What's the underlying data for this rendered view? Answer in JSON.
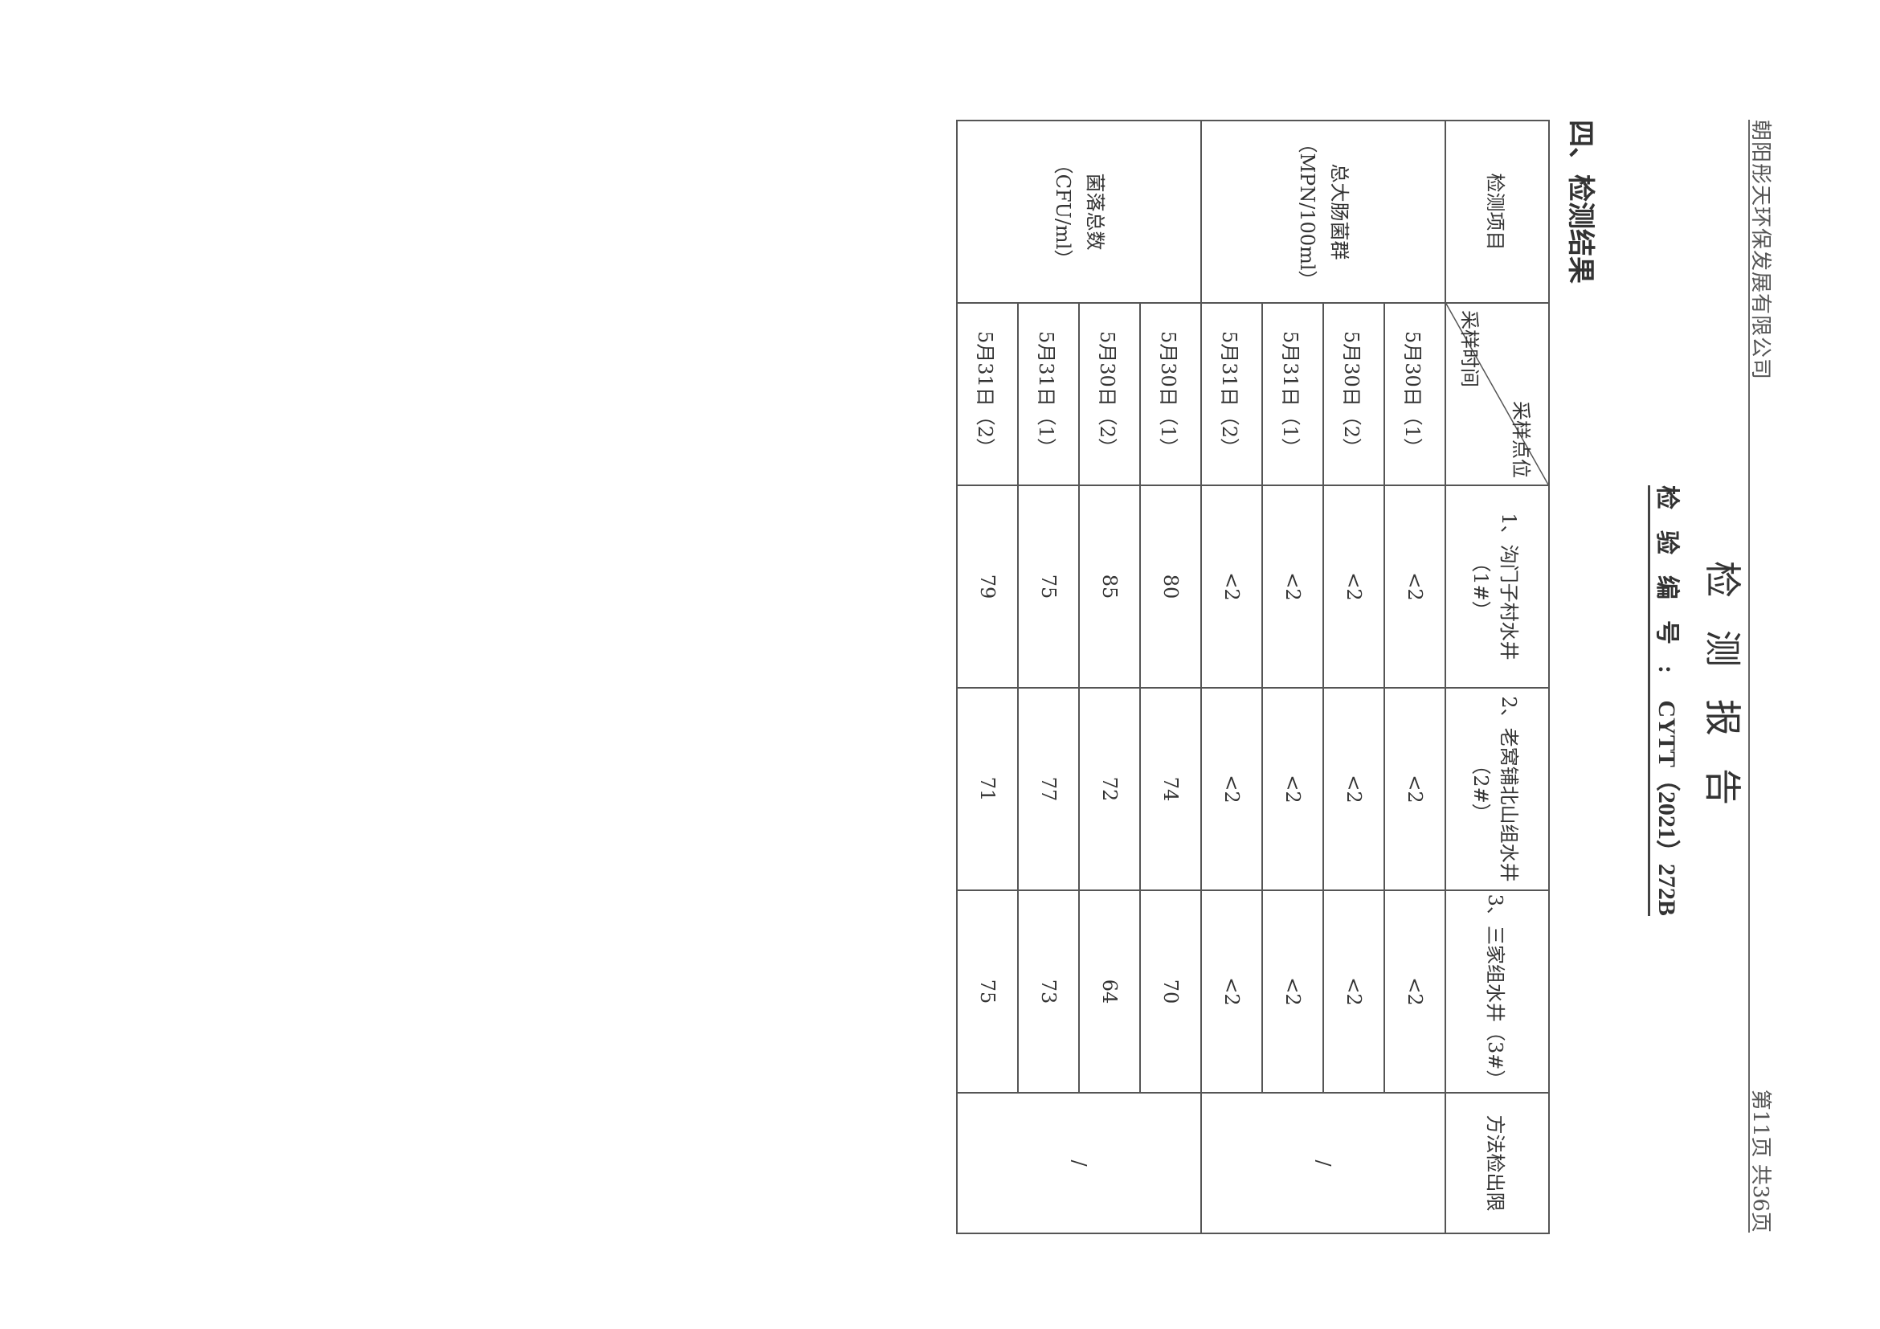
{
  "header": {
    "company": "朝阳彤天环保发展有限公司",
    "page_info": "第11页  共36页"
  },
  "title": "检测报告",
  "report_no": {
    "label": "检验编号:",
    "value": "CYTT（2021）272B"
  },
  "section_title": "四、检测结果",
  "table": {
    "col_item": "检测项目",
    "diag_top": "采样点位",
    "diag_bottom": "采样时间",
    "sites": [
      "1、沟门子村水井（1#）",
      "2、老窝铺北山组水井（2#）",
      "3、三家组水井（3#）"
    ],
    "col_method": "方法检出限",
    "groups": [
      {
        "item": "总大肠菌群",
        "unit": "（MPN/100ml）",
        "method": "/",
        "rows": [
          {
            "time": "5月30日（1）",
            "values": [
              "<2",
              "<2",
              "<2"
            ]
          },
          {
            "time": "5月30日（2）",
            "values": [
              "<2",
              "<2",
              "<2"
            ]
          },
          {
            "time": "5月31日（1）",
            "values": [
              "<2",
              "<2",
              "<2"
            ]
          },
          {
            "time": "5月31日（2）",
            "values": [
              "<2",
              "<2",
              "<2"
            ]
          }
        ]
      },
      {
        "item": "菌落总数",
        "unit": "（CFU/ml）",
        "method": "/",
        "rows": [
          {
            "time": "5月30日（1）",
            "values": [
              "80",
              "74",
              "70"
            ]
          },
          {
            "time": "5月30日（2）",
            "values": [
              "85",
              "72",
              "64"
            ]
          },
          {
            "time": "5月31日（1）",
            "values": [
              "75",
              "77",
              "73"
            ]
          },
          {
            "time": "5月31日（2）",
            "values": [
              "79",
              "71",
              "75"
            ]
          }
        ]
      }
    ]
  }
}
